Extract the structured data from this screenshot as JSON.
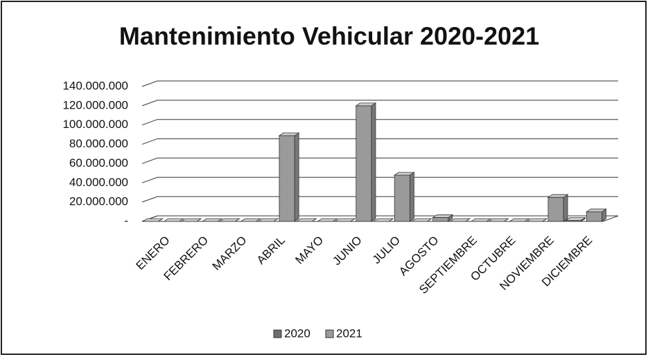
{
  "chart_data": {
    "type": "bar3d",
    "title": "Mantenimiento Vehicular 2020-2021",
    "categories": [
      "ENERO",
      "FEBRERO",
      "MARZO",
      "ABRIL",
      "MAYO",
      "JUNIO",
      "JULIO",
      "AGOSTO",
      "SEPTIEMBRE",
      "OCTUBRE",
      "NOVIEMBRE",
      "DICIEMBRE"
    ],
    "series": [
      {
        "name": "2020",
        "color": "#6e6e6e",
        "values": [
          0,
          0,
          0,
          0,
          0,
          0,
          0,
          0,
          0,
          0,
          0,
          1000000
        ]
      },
      {
        "name": "2021",
        "color": "#9a9a9a",
        "values": [
          0,
          0,
          0,
          89000000,
          0,
          120000000,
          48000000,
          4000000,
          0,
          0,
          25000000,
          10000000
        ]
      }
    ],
    "ylim": [
      0,
      140000000
    ],
    "yticks": [
      {
        "value": 0,
        "label": "-"
      },
      {
        "value": 20000000,
        "label": "20.000.000"
      },
      {
        "value": 40000000,
        "label": "40.000.000"
      },
      {
        "value": 60000000,
        "label": "60.000.000"
      },
      {
        "value": 80000000,
        "label": "80.000.000"
      },
      {
        "value": 100000000,
        "label": "100.000.000"
      },
      {
        "value": 120000000,
        "label": "120.000.000"
      },
      {
        "value": 140000000,
        "label": "140.000.000"
      }
    ],
    "grid": true,
    "legend": "bottom"
  }
}
